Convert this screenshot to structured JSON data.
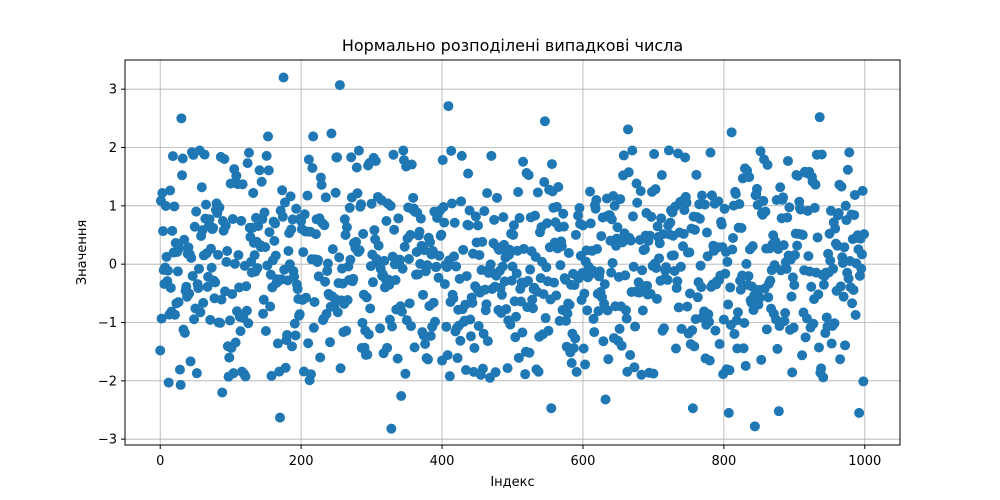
{
  "chart_data": {
    "type": "scatter",
    "title": "Нормально розподілені випадкові числа",
    "xlabel": "Індекс",
    "ylabel": "Значення",
    "xlim": [
      -50,
      1050
    ],
    "ylim": [
      -3.1,
      3.5
    ],
    "xticks": [
      0,
      200,
      400,
      600,
      800,
      1000
    ],
    "yticks": [
      -3,
      -2,
      -1,
      0,
      1,
      2,
      3
    ],
    "xtick_labels": [
      "0",
      "200",
      "400",
      "600",
      "800",
      "1000"
    ],
    "ytick_labels": [
      "−3",
      "−2",
      "−1",
      "0",
      "1",
      "2",
      "3"
    ],
    "grid": true,
    "marker_color": "#1f77b4",
    "n_points": 1000,
    "notable_points": [
      {
        "x": 0,
        "y": -1.48
      },
      {
        "x": 3,
        "y": 1.22
      },
      {
        "x": 12,
        "y": -2.03
      },
      {
        "x": 29,
        "y": -2.07
      },
      {
        "x": 30,
        "y": 2.5
      },
      {
        "x": 88,
        "y": -2.2
      },
      {
        "x": 153,
        "y": 2.19
      },
      {
        "x": 170,
        "y": -2.63
      },
      {
        "x": 175,
        "y": 3.2
      },
      {
        "x": 212,
        "y": -1.99
      },
      {
        "x": 217,
        "y": 2.19
      },
      {
        "x": 243,
        "y": 2.24
      },
      {
        "x": 255,
        "y": 3.07
      },
      {
        "x": 328,
        "y": -2.82
      },
      {
        "x": 342,
        "y": -2.26
      },
      {
        "x": 409,
        "y": 2.71
      },
      {
        "x": 546,
        "y": 2.45
      },
      {
        "x": 555,
        "y": -2.47
      },
      {
        "x": 632,
        "y": -2.32
      },
      {
        "x": 664,
        "y": 2.31
      },
      {
        "x": 756,
        "y": -2.47
      },
      {
        "x": 807,
        "y": -2.55
      },
      {
        "x": 811,
        "y": 2.26
      },
      {
        "x": 844,
        "y": -2.78
      },
      {
        "x": 878,
        "y": -2.52
      },
      {
        "x": 936,
        "y": 2.52
      },
      {
        "x": 992,
        "y": -2.55
      },
      {
        "x": 998,
        "y": -2.01
      }
    ],
    "y_std": 1.0,
    "seed": 20240517
  }
}
